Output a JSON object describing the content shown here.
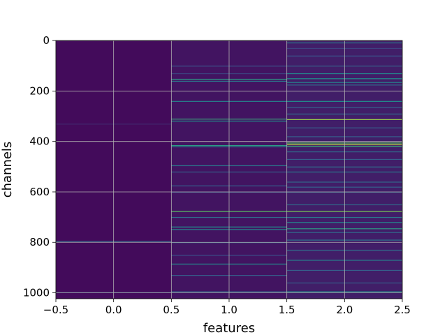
{
  "chart_data": {
    "type": "heatmap",
    "title": "",
    "xlabel": "features",
    "ylabel": "channels",
    "xlim": [
      -0.5,
      2.5
    ],
    "ylim": [
      1023.5,
      -0.5
    ],
    "x_ticks": [
      -0.5,
      0.0,
      0.5,
      1.0,
      1.5,
      2.0,
      2.5
    ],
    "x_tick_labels": [
      "−0.5",
      "0.0",
      "0.5",
      "1.0",
      "1.5",
      "2.0",
      "2.5"
    ],
    "y_ticks": [
      0,
      200,
      400,
      600,
      800,
      1000
    ],
    "y_tick_labels": [
      "0",
      "200",
      "400",
      "600",
      "800",
      "1000"
    ],
    "grid": true,
    "colormap": "viridis",
    "n_rows": 1024,
    "columns": [
      {
        "feature": 0,
        "base_value": 0.03,
        "stripes": [
          [
            330,
            0.12
          ],
          [
            795,
            0.35
          ],
          [
            998,
            0.2
          ]
        ]
      },
      {
        "feature": 1,
        "base_value": 0.06,
        "stripes": [
          [
            100,
            0.25
          ],
          [
            130,
            0.2
          ],
          [
            152,
            0.55
          ],
          [
            160,
            0.4
          ],
          [
            240,
            0.45
          ],
          [
            310,
            0.6
          ],
          [
            318,
            0.5
          ],
          [
            415,
            0.55
          ],
          [
            420,
            0.45
          ],
          [
            495,
            0.4
          ],
          [
            520,
            0.3
          ],
          [
            575,
            0.3
          ],
          [
            600,
            0.25
          ],
          [
            676,
            0.75
          ],
          [
            700,
            0.35
          ],
          [
            738,
            0.5
          ],
          [
            748,
            0.45
          ],
          [
            800,
            0.3
          ],
          [
            850,
            0.25
          ],
          [
            885,
            0.45
          ],
          [
            930,
            0.3
          ],
          [
            995,
            0.35
          ]
        ]
      },
      {
        "feature": 2,
        "base_value": 0.09,
        "stripes": [
          [
            8,
            0.4
          ],
          [
            30,
            0.2
          ],
          [
            60,
            0.25
          ],
          [
            100,
            0.3
          ],
          [
            130,
            0.45
          ],
          [
            150,
            0.5
          ],
          [
            165,
            0.45
          ],
          [
            175,
            0.35
          ],
          [
            240,
            0.5
          ],
          [
            265,
            0.3
          ],
          [
            290,
            0.35
          ],
          [
            312,
            0.85
          ],
          [
            345,
            0.3
          ],
          [
            380,
            0.3
          ],
          [
            405,
            0.75
          ],
          [
            412,
            0.9
          ],
          [
            418,
            0.6
          ],
          [
            440,
            0.35
          ],
          [
            470,
            0.3
          ],
          [
            500,
            0.35
          ],
          [
            520,
            0.4
          ],
          [
            560,
            0.35
          ],
          [
            580,
            0.3
          ],
          [
            600,
            0.3
          ],
          [
            650,
            0.35
          ],
          [
            676,
            0.8
          ],
          [
            700,
            0.4
          ],
          [
            720,
            0.45
          ],
          [
            745,
            0.55
          ],
          [
            760,
            0.35
          ],
          [
            790,
            0.4
          ],
          [
            830,
            0.35
          ],
          [
            870,
            0.45
          ],
          [
            910,
            0.3
          ],
          [
            960,
            0.3
          ],
          [
            995,
            0.5
          ]
        ]
      }
    ]
  }
}
